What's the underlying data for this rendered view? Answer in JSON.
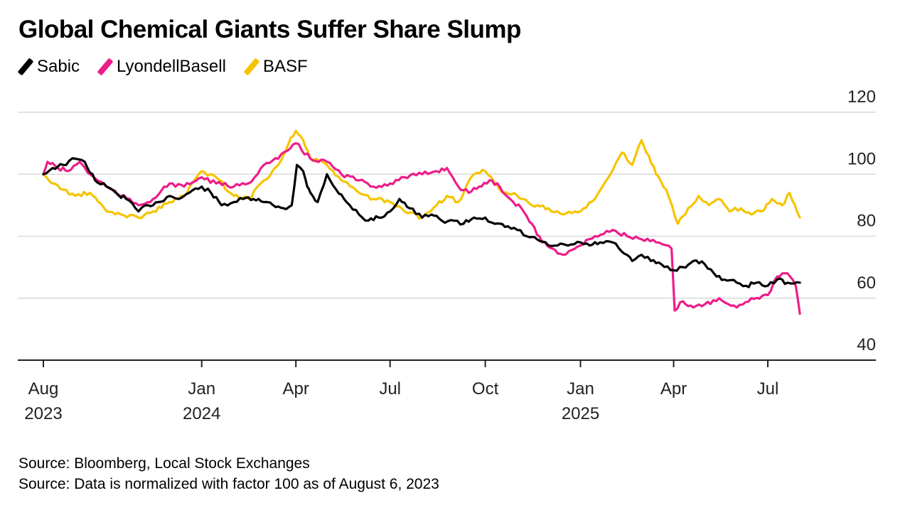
{
  "title": "Global Chemical Giants Suffer Share Slump",
  "colors": {
    "Sabic": "#000000",
    "LyondellBasell": "#ee1c8a",
    "BASF": "#f5c400",
    "grid": "#d9d9d9",
    "axis": "#222222"
  },
  "footnotes": [
    "Source: Bloomberg, Local Stock Exchanges",
    "Source: Data is normalized with factor 100 as of August 6, 2023"
  ],
  "chart_data": {
    "type": "line",
    "title": "Global Chemical Giants Suffer Share Slump",
    "xlabel": "",
    "ylabel": "",
    "x_range": [
      "2023-08-01",
      "2025-10-01"
    ],
    "ylim": [
      40,
      120
    ],
    "y_ticks": [
      40,
      60,
      80,
      100,
      120
    ],
    "y_axis_position": "right",
    "grid": true,
    "legend_position": "top-left",
    "x_ticks": [
      {
        "date": "2023-08-01",
        "label": "Aug",
        "year": "2023"
      },
      {
        "date": "2024-01-01",
        "label": "Jan",
        "year": "2024"
      },
      {
        "date": "2024-04-01",
        "label": "Apr",
        "year": ""
      },
      {
        "date": "2024-07-01",
        "label": "Jul",
        "year": ""
      },
      {
        "date": "2024-10-01",
        "label": "Oct",
        "year": ""
      },
      {
        "date": "2025-01-01",
        "label": "Jan",
        "year": "2025"
      },
      {
        "date": "2025-04-01",
        "label": "Apr",
        "year": ""
      },
      {
        "date": "2025-07-01",
        "label": "Jul",
        "year": ""
      }
    ],
    "series": [
      {
        "name": "Sabic",
        "color": "#000000",
        "points": [
          [
            "2023-08-01",
            100
          ],
          [
            "2023-08-10",
            102
          ],
          [
            "2023-08-20",
            103
          ],
          [
            "2023-09-01",
            105
          ],
          [
            "2023-09-10",
            104
          ],
          [
            "2023-09-20",
            98
          ],
          [
            "2023-10-01",
            96
          ],
          [
            "2023-10-10",
            94
          ],
          [
            "2023-10-20",
            92
          ],
          [
            "2023-11-01",
            88
          ],
          [
            "2023-11-10",
            90
          ],
          [
            "2023-11-20",
            91
          ],
          [
            "2023-12-01",
            93
          ],
          [
            "2023-12-10",
            92
          ],
          [
            "2023-12-20",
            94
          ],
          [
            "2024-01-01",
            96
          ],
          [
            "2024-01-10",
            94
          ],
          [
            "2024-01-20",
            90
          ],
          [
            "2024-02-01",
            91
          ],
          [
            "2024-02-10",
            92
          ],
          [
            "2024-02-20",
            92
          ],
          [
            "2024-03-01",
            91
          ],
          [
            "2024-03-10",
            90
          ],
          [
            "2024-03-20",
            89
          ],
          [
            "2024-03-28",
            90
          ],
          [
            "2024-04-02",
            103
          ],
          [
            "2024-04-08",
            101
          ],
          [
            "2024-04-12",
            96
          ],
          [
            "2024-04-15",
            94
          ],
          [
            "2024-04-22",
            91
          ],
          [
            "2024-05-01",
            100
          ],
          [
            "2024-05-10",
            95
          ],
          [
            "2024-05-20",
            91
          ],
          [
            "2024-06-01",
            87
          ],
          [
            "2024-06-10",
            85
          ],
          [
            "2024-06-20",
            86
          ],
          [
            "2024-07-01",
            88
          ],
          [
            "2024-07-10",
            92
          ],
          [
            "2024-07-20",
            89
          ],
          [
            "2024-08-01",
            86
          ],
          [
            "2024-08-10",
            87
          ],
          [
            "2024-08-20",
            85
          ],
          [
            "2024-09-01",
            85
          ],
          [
            "2024-09-10",
            84
          ],
          [
            "2024-09-20",
            86
          ],
          [
            "2024-10-01",
            86
          ],
          [
            "2024-10-10",
            84
          ],
          [
            "2024-10-20",
            83
          ],
          [
            "2024-11-01",
            82
          ],
          [
            "2024-11-10",
            80
          ],
          [
            "2024-11-20",
            79
          ],
          [
            "2024-12-01",
            77
          ],
          [
            "2024-12-10",
            77
          ],
          [
            "2024-12-20",
            77
          ],
          [
            "2025-01-01",
            78
          ],
          [
            "2025-01-10",
            77
          ],
          [
            "2025-01-20",
            78
          ],
          [
            "2025-02-01",
            78
          ],
          [
            "2025-02-10",
            75
          ],
          [
            "2025-02-20",
            72
          ],
          [
            "2025-03-01",
            74
          ],
          [
            "2025-03-10",
            72
          ],
          [
            "2025-03-20",
            71
          ],
          [
            "2025-04-01",
            69
          ],
          [
            "2025-04-10",
            70
          ],
          [
            "2025-04-20",
            72
          ],
          [
            "2025-05-01",
            71
          ],
          [
            "2025-05-10",
            68
          ],
          [
            "2025-05-20",
            66
          ],
          [
            "2025-06-01",
            65
          ],
          [
            "2025-06-10",
            64
          ],
          [
            "2025-06-20",
            65
          ],
          [
            "2025-07-01",
            64
          ],
          [
            "2025-07-10",
            66
          ],
          [
            "2025-07-20",
            65
          ],
          [
            "2025-08-01",
            65
          ]
        ]
      },
      {
        "name": "LyondellBasell",
        "color": "#ee1c8a",
        "points": [
          [
            "2023-08-01",
            100
          ],
          [
            "2023-08-05",
            104
          ],
          [
            "2023-08-15",
            102
          ],
          [
            "2023-08-25",
            101
          ],
          [
            "2023-09-05",
            104
          ],
          [
            "2023-09-15",
            100
          ],
          [
            "2023-10-01",
            96
          ],
          [
            "2023-10-15",
            93
          ],
          [
            "2023-11-01",
            90
          ],
          [
            "2023-11-15",
            92
          ],
          [
            "2023-12-01",
            97
          ],
          [
            "2023-12-15",
            96
          ],
          [
            "2024-01-01",
            99
          ],
          [
            "2024-01-15",
            97
          ],
          [
            "2024-02-01",
            96
          ],
          [
            "2024-02-15",
            97
          ],
          [
            "2024-03-01",
            103
          ],
          [
            "2024-03-15",
            105
          ],
          [
            "2024-04-01",
            110
          ],
          [
            "2024-04-15",
            105
          ],
          [
            "2024-05-01",
            104
          ],
          [
            "2024-05-15",
            100
          ],
          [
            "2024-06-01",
            98
          ],
          [
            "2024-06-15",
            96
          ],
          [
            "2024-07-01",
            97
          ],
          [
            "2024-07-15",
            99
          ],
          [
            "2024-08-01",
            100
          ],
          [
            "2024-08-15",
            101
          ],
          [
            "2024-08-25",
            102
          ],
          [
            "2024-09-05",
            96
          ],
          [
            "2024-09-15",
            94
          ],
          [
            "2024-09-25",
            96
          ],
          [
            "2024-10-05",
            98
          ],
          [
            "2024-10-15",
            96
          ],
          [
            "2024-10-25",
            92
          ],
          [
            "2024-11-05",
            89
          ],
          [
            "2024-11-15",
            84
          ],
          [
            "2024-11-25",
            78
          ],
          [
            "2024-12-05",
            76
          ],
          [
            "2024-12-15",
            74
          ],
          [
            "2025-01-01",
            77
          ],
          [
            "2025-01-15",
            80
          ],
          [
            "2025-02-01",
            82
          ],
          [
            "2025-02-15",
            80
          ],
          [
            "2025-03-01",
            79
          ],
          [
            "2025-03-15",
            78
          ],
          [
            "2025-03-30",
            76
          ],
          [
            "2025-04-02",
            56
          ],
          [
            "2025-04-10",
            59
          ],
          [
            "2025-04-20",
            57
          ],
          [
            "2025-05-01",
            58
          ],
          [
            "2025-05-15",
            60
          ],
          [
            "2025-06-01",
            57
          ],
          [
            "2025-06-15",
            60
          ],
          [
            "2025-07-01",
            61
          ],
          [
            "2025-07-10",
            67
          ],
          [
            "2025-07-20",
            68
          ],
          [
            "2025-07-28",
            64
          ],
          [
            "2025-08-01",
            55
          ]
        ]
      },
      {
        "name": "BASF",
        "color": "#f5c400",
        "points": [
          [
            "2023-08-01",
            100
          ],
          [
            "2023-08-10",
            97
          ],
          [
            "2023-08-20",
            95
          ],
          [
            "2023-09-01",
            93
          ],
          [
            "2023-09-15",
            94
          ],
          [
            "2023-10-01",
            88
          ],
          [
            "2023-10-15",
            87
          ],
          [
            "2023-11-01",
            86
          ],
          [
            "2023-11-15",
            88
          ],
          [
            "2023-12-01",
            91
          ],
          [
            "2023-12-15",
            93
          ],
          [
            "2024-01-01",
            101
          ],
          [
            "2024-01-15",
            99
          ],
          [
            "2024-02-01",
            93
          ],
          [
            "2024-02-15",
            92
          ],
          [
            "2024-03-01",
            98
          ],
          [
            "2024-03-15",
            103
          ],
          [
            "2024-03-25",
            110
          ],
          [
            "2024-04-01",
            114
          ],
          [
            "2024-04-08",
            111
          ],
          [
            "2024-04-15",
            105
          ],
          [
            "2024-05-01",
            103
          ],
          [
            "2024-05-15",
            98
          ],
          [
            "2024-06-01",
            94
          ],
          [
            "2024-06-15",
            92
          ],
          [
            "2024-07-01",
            91
          ],
          [
            "2024-07-15",
            88
          ],
          [
            "2024-08-01",
            86
          ],
          [
            "2024-08-15",
            90
          ],
          [
            "2024-08-25",
            93
          ],
          [
            "2024-09-05",
            91
          ],
          [
            "2024-09-20",
            100
          ],
          [
            "2024-10-01",
            101
          ],
          [
            "2024-10-15",
            95
          ],
          [
            "2024-11-01",
            93
          ],
          [
            "2024-11-15",
            90
          ],
          [
            "2024-12-01",
            89
          ],
          [
            "2024-12-15",
            87
          ],
          [
            "2025-01-01",
            88
          ],
          [
            "2025-01-15",
            92
          ],
          [
            "2025-01-30",
            100
          ],
          [
            "2025-02-10",
            107
          ],
          [
            "2025-02-20",
            103
          ],
          [
            "2025-03-01",
            111
          ],
          [
            "2025-03-08",
            106
          ],
          [
            "2025-03-15",
            100
          ],
          [
            "2025-03-25",
            95
          ],
          [
            "2025-04-05",
            84
          ],
          [
            "2025-04-15",
            89
          ],
          [
            "2025-04-25",
            93
          ],
          [
            "2025-05-05",
            90
          ],
          [
            "2025-05-15",
            92
          ],
          [
            "2025-05-25",
            88
          ],
          [
            "2025-06-05",
            89
          ],
          [
            "2025-06-15",
            87
          ],
          [
            "2025-06-25",
            88
          ],
          [
            "2025-07-05",
            92
          ],
          [
            "2025-07-15",
            90
          ],
          [
            "2025-07-22",
            94
          ],
          [
            "2025-08-01",
            86
          ]
        ]
      }
    ]
  }
}
